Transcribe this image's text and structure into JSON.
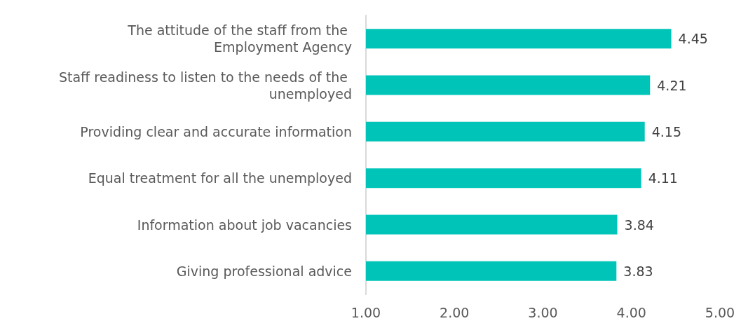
{
  "chart_data": {
    "type": "bar",
    "orientation": "horizontal",
    "categories": [
      "The attitude of the staff from the Employment Agency",
      "Staff readiness to listen to the needs of the unemployed",
      "Providing clear and accurate information",
      "Equal treatment for all the unemployed",
      "Information about job vacancies",
      "Giving professional advice"
    ],
    "values": [
      4.45,
      4.21,
      4.15,
      4.11,
      3.84,
      3.83
    ],
    "color": "#00c4b8",
    "xlim": [
      1,
      5
    ],
    "xticks": [
      {
        "value": 1,
        "label": "1.00"
      },
      {
        "value": 2,
        "label": "2.00"
      },
      {
        "value": 3,
        "label": "3.00"
      },
      {
        "value": 4,
        "label": "4.00"
      },
      {
        "value": 5,
        "label": "5.00"
      }
    ],
    "data_labels": true
  }
}
